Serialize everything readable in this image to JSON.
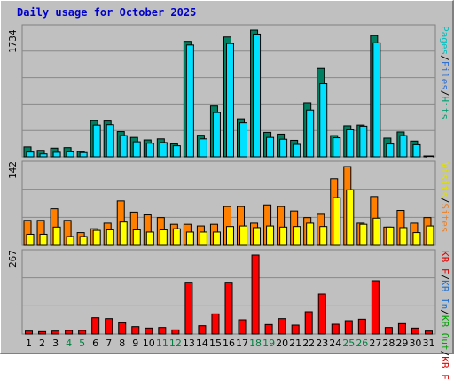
{
  "title": "Daily usage for October 2025",
  "chart_data": {
    "type": "bar",
    "title": "Daily usage for October 2025",
    "categories": [
      "1",
      "2",
      "3",
      "4",
      "5",
      "6",
      "7",
      "8",
      "9",
      "10",
      "11",
      "12",
      "13",
      "14",
      "15",
      "16",
      "17",
      "18",
      "19",
      "20",
      "21",
      "22",
      "23",
      "24",
      "25",
      "26",
      "27",
      "28",
      "29",
      "30",
      "31"
    ],
    "weekend_days": [
      "4",
      "5",
      "11",
      "12",
      "18",
      "19",
      "25",
      "26"
    ],
    "panels": [
      {
        "name": "hits-files-pages",
        "ymax_label": "1734",
        "ylim": [
          0,
          1734
        ],
        "legend": [
          "Pages",
          "/",
          "Files",
          "/",
          "Hits"
        ],
        "legend_colors": [
          "#00c0c0",
          "#000000",
          "#3070d0",
          "#000000",
          "#00a070"
        ],
        "series": [
          {
            "name": "Hits",
            "color": "#008060",
            "values": [
              135,
              88,
              118,
              125,
              72,
              495,
              490,
              345,
              265,
              230,
              245,
              175,
              1580,
              295,
              695,
              1640,
              520,
              1734,
              335,
              310,
              225,
              740,
              1210,
              290,
              425,
              435,
              1660,
              255,
              340,
              215,
              12
            ]
          },
          {
            "name": "Files",
            "color": "#00e0ff",
            "values": [
              65,
              40,
              62,
              68,
              58,
              435,
              440,
              290,
              205,
              185,
              195,
              150,
              1530,
              245,
              605,
              1550,
              465,
              1680,
              265,
              240,
              170,
              640,
              1000,
              260,
              370,
              420,
              1560,
              175,
              290,
              165,
              10
            ]
          }
        ]
      },
      {
        "name": "visits-sites",
        "ymax_label": "142",
        "ylim": [
          0,
          142
        ],
        "legend": [
          "Visits",
          "/",
          "Sites"
        ],
        "legend_colors": [
          "#e0e000",
          "#000000",
          "#f08020"
        ],
        "series": [
          {
            "name": "Sites",
            "color": "#ff8000",
            "values": [
              45,
              45,
              66,
              45,
              23,
              30,
              40,
              80,
              60,
              55,
              50,
              38,
              38,
              35,
              38,
              70,
              70,
              40,
              73,
              70,
              62,
              50,
              56,
              120,
              142,
              40,
              88,
              33,
              63,
              40,
              50
            ]
          },
          {
            "name": "Visits",
            "color": "#ffff00",
            "values": [
              20,
              20,
              33,
              16,
              16,
              27,
              28,
              42,
              28,
              24,
              28,
              30,
              24,
              24,
              24,
              34,
              35,
              32,
              35,
              33,
              34,
              40,
              34,
              86,
              100,
              38,
              49,
              33,
              32,
              23,
              35
            ]
          }
        ]
      },
      {
        "name": "kbytes",
        "ymax_label": "267",
        "ylim": [
          0,
          267
        ],
        "legend": [
          "KB F",
          "/",
          "KB In",
          "/",
          "KB Out",
          "/",
          "KB F"
        ],
        "legend_colors": [
          "#e00000",
          "#000000",
          "#2070d0",
          "#000000",
          "#00a000",
          "#000000",
          "#e00000"
        ],
        "series": [
          {
            "name": "KB F",
            "color": "#ff0000",
            "values": [
              10,
              8,
              10,
              12,
              12,
              55,
              52,
              38,
              25,
              20,
              22,
              14,
              175,
              28,
              68,
              175,
              48,
              267,
              32,
              52,
              30,
              75,
              135,
              33,
              45,
              50,
              180,
              22,
              35,
              20,
              10
            ]
          }
        ]
      }
    ]
  }
}
